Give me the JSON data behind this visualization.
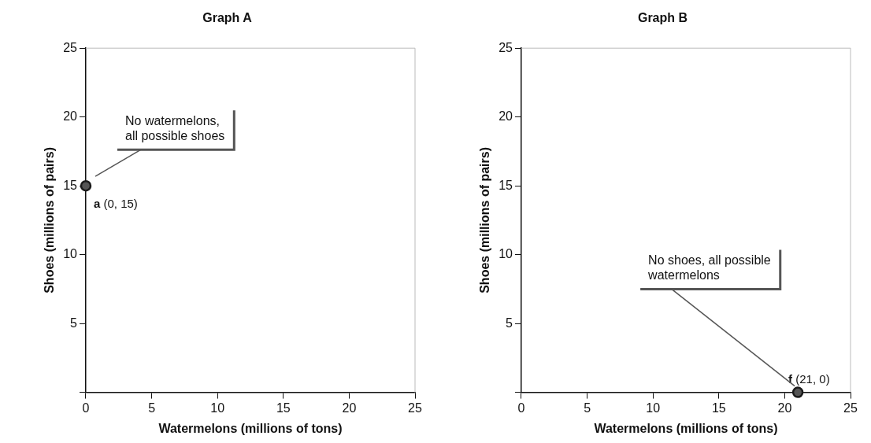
{
  "chart_data": [
    {
      "type": "scatter",
      "title": "Graph A",
      "xlabel": "Watermelons (millions of tons)",
      "ylabel": "Shoes (millions of pairs)",
      "series": [
        {
          "color": "#1a1a1a",
          "x": [
            0
          ],
          "values": [
            15
          ]
        }
      ],
      "xlim": [
        0,
        25
      ],
      "ylim": [
        0,
        25
      ],
      "xticks": [
        0,
        5,
        10,
        15,
        20,
        25
      ],
      "yticks": [
        {
          "value": 0,
          "label": null
        },
        5,
        10,
        15,
        20,
        25
      ],
      "grid": false,
      "legend": false,
      "marker": "circle",
      "annotations": [
        {
          "text": "a (0, 15)",
          "x": 0,
          "y": 15
        },
        "No watermelons,\nall possible shoes"
      ]
    },
    {
      "type": "scatter",
      "title": "Graph B",
      "xlabel": "Watermelons (millions of tons)",
      "ylabel": "Shoes (millions of pairs)",
      "series": [
        {
          "color": "#1a1a1a",
          "x": [
            21
          ],
          "values": [
            0
          ]
        }
      ],
      "xlim": [
        0,
        25
      ],
      "ylim": [
        0,
        25
      ],
      "xticks": [
        0,
        5,
        10,
        15,
        20,
        25
      ],
      "yticks": [
        {
          "value": 0,
          "label": null
        },
        5,
        10,
        15,
        20,
        25
      ],
      "grid": false,
      "legend": false,
      "marker": "circle",
      "annotations": [
        {
          "text": "f (21, 0)",
          "x": 21,
          "y": 0
        },
        "No shoes, all possible\nwatermelons"
      ]
    }
  ]
}
